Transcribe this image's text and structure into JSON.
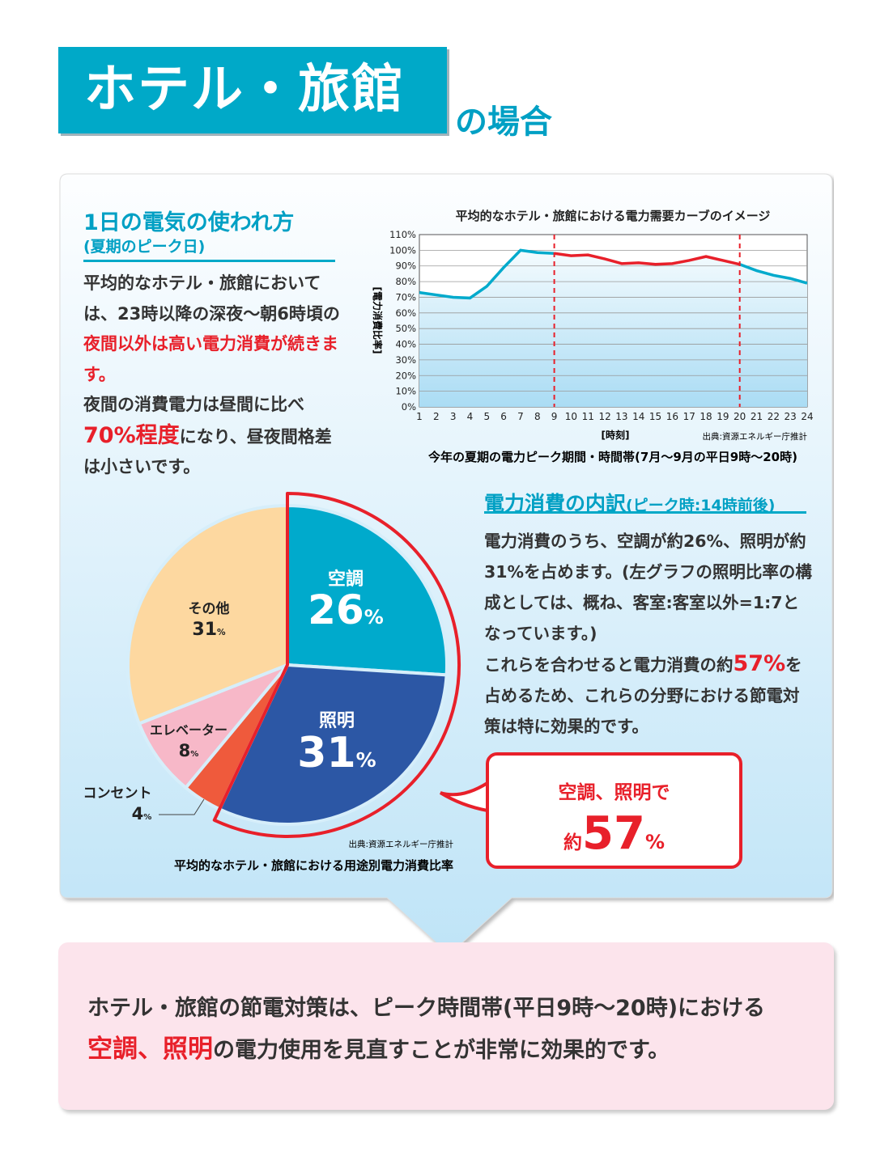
{
  "title": {
    "main": "ホテル・旅館",
    "suffix": "の場合"
  },
  "left": {
    "heading": "1日の電気の使われ方",
    "subheading": "(夏期のピーク日)",
    "p1a": "平均的なホテル・旅館においては、23時以降の深夜〜朝6時頃の",
    "p1b": "夜間以外は高い電力消費が続きます。",
    "p2a": "夜間の消費電力は昼間に比べ",
    "p2b": "70%程度",
    "p2c": "になり、昼夜間格差は小さいです。"
  },
  "right": {
    "heading": "電力消費の内訳",
    "heading_sub": "(ピーク時:14時前後)",
    "p1": "電力消費のうち、空調が約26%、照明が約31%を占めます。(左グラフの照明比率の構成としては、概ね、客室:客室以外=1:7となっています。)",
    "p2a": "これらを合わせると電力消費の約",
    "p2b": "57%",
    "p2c": "を占めるため、これらの分野における節電対策は特に効果的です。"
  },
  "callout": {
    "line1": "空調、照明で",
    "prefix": "約",
    "value": "57",
    "unit": "%"
  },
  "bottom": {
    "line1": "ホテル・旅館の節電対策は、ピーク時間帯(平日9時〜20時)における",
    "red": "空調、照明",
    "line2": "の電力使用を見直すことが非常に効果的です。"
  },
  "colors": {
    "teal": "#00a9c8",
    "red": "#e8202a",
    "navy": "#2c57a5",
    "pink_panel": "#fce4ec"
  },
  "chart_data": [
    {
      "type": "line",
      "title": "平均的なホテル・旅館における電力需要カーブのイメージ",
      "xlabel": "[時刻]",
      "ylabel": "[電力消費比率]",
      "source": "出典:資源エネルギー庁推計",
      "caption": "今年の夏期の電力ピーク期間・時間帯(7月〜9月の平日9時〜20時)",
      "x": [
        1,
        2,
        3,
        4,
        5,
        6,
        7,
        8,
        9,
        10,
        11,
        12,
        13,
        14,
        15,
        16,
        17,
        18,
        19,
        20,
        21,
        22,
        23,
        24
      ],
      "values": [
        73,
        71.5,
        70,
        69.5,
        77,
        89,
        100,
        98.5,
        98,
        96.5,
        97,
        94.5,
        91.5,
        92,
        91,
        91.5,
        93.5,
        96,
        93.5,
        91,
        87,
        84,
        82,
        79
      ],
      "ylim": [
        0,
        110
      ],
      "yticks": [
        "0%",
        "10%",
        "20%",
        "30%",
        "40%",
        "50%",
        "60%",
        "70%",
        "80%",
        "90%",
        "100%",
        "110%"
      ],
      "peak_range": [
        9,
        20
      ],
      "grid": true,
      "colors": {
        "line": "#00aacc",
        "peak": "#e8202a"
      }
    },
    {
      "type": "pie",
      "caption": "平均的なホテル・旅館における用途別電力消費比率",
      "source": "出典:資源エネルギー庁推計",
      "slices": [
        {
          "label": "空調",
          "value": 26,
          "color": "#00aacc"
        },
        {
          "label": "照明",
          "value": 31,
          "color": "#2c57a5"
        },
        {
          "label": "コンセント",
          "value": 4,
          "color": "#ef5a3c"
        },
        {
          "label": "エレベーター",
          "value": 8,
          "color": "#f7b8c8"
        },
        {
          "label": "その他",
          "value": 31,
          "color": "#fdd8a0"
        }
      ],
      "highlight": [
        "空調",
        "照明"
      ]
    }
  ]
}
